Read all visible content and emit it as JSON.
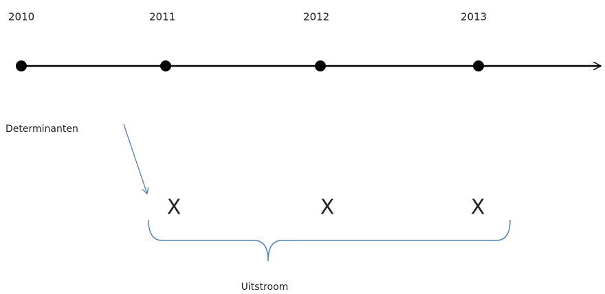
{
  "timeline": {
    "years": [
      "2010",
      "2011",
      "2012",
      "2013"
    ]
  },
  "markers": [
    "X",
    "X",
    "X"
  ],
  "annotations": {
    "determinants": "Determinanten",
    "outflow": "Uitstroom"
  }
}
